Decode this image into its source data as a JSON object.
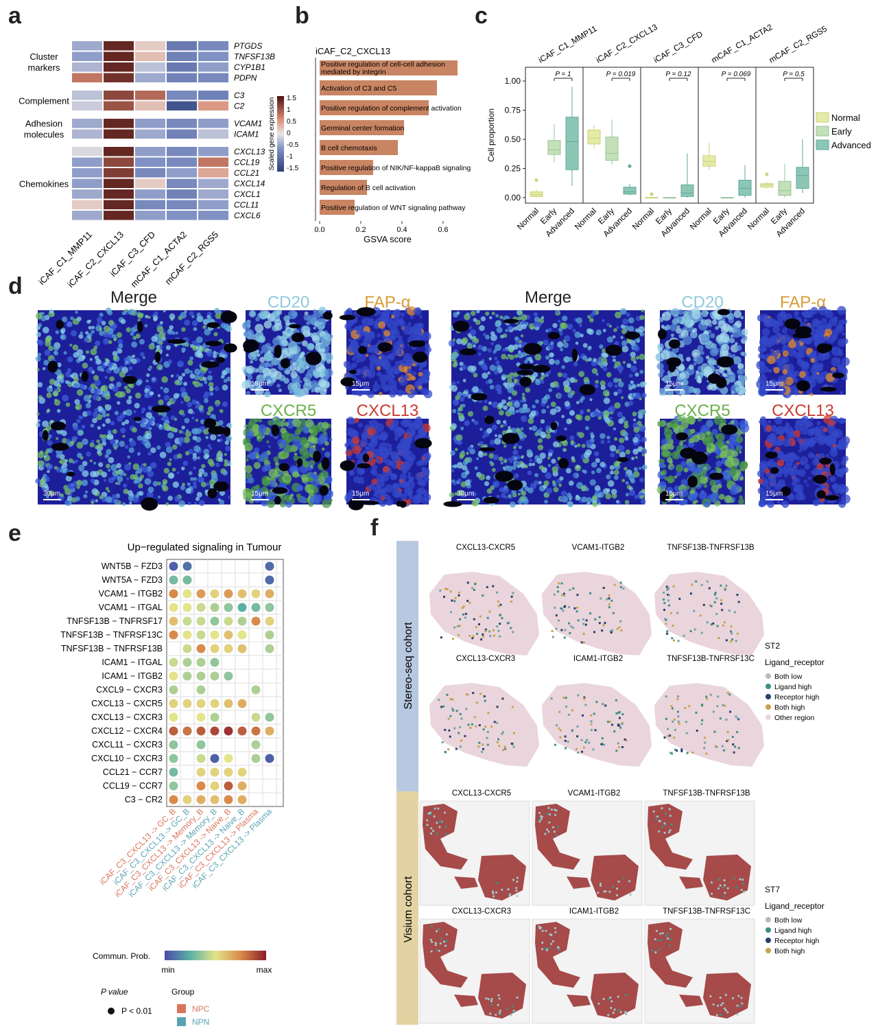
{
  "panels": {
    "a": "a",
    "b": "b",
    "c": "c",
    "d": "d",
    "e": "e",
    "f": "f"
  },
  "panel_a": {
    "columns": [
      "iCAF_C1_MMP11",
      "iCAF_C2_CXCL13",
      "iCAF_C3_CFD",
      "mCAF_C1_ACTA2",
      "mCAF_C2_RGS5"
    ],
    "groups": [
      {
        "label": "Cluster\nmarkers",
        "genes": [
          "PTGDS",
          "TNFSF13B",
          "CYP1B1",
          "PDPN"
        ]
      },
      {
        "label": "Complement",
        "genes": [
          "C3",
          "C2"
        ]
      },
      {
        "label": "Adhesion\nmolecules",
        "genes": [
          "VCAM1",
          "ICAM1"
        ]
      },
      {
        "label": "Chemokines",
        "genes": [
          "CXCL13",
          "CCL19",
          "CCL21",
          "CXCL14",
          "CXCL1",
          "CCL11",
          "CXCL6"
        ]
      }
    ],
    "values": [
      [
        -0.5,
        1.6,
        0.2,
        -1.0,
        -0.8
      ],
      [
        -0.6,
        1.6,
        0.3,
        -0.9,
        -0.7
      ],
      [
        -0.4,
        1.6,
        -0.3,
        -1.0,
        -0.6
      ],
      [
        0.9,
        1.5,
        -0.5,
        -0.9,
        -0.8
      ],
      [
        -0.3,
        1.3,
        1.0,
        -0.8,
        -0.9
      ],
      [
        -0.2,
        1.2,
        0.3,
        -1.5,
        0.6
      ],
      [
        -0.5,
        1.6,
        -0.6,
        -0.8,
        -0.6
      ],
      [
        -0.4,
        1.6,
        -0.5,
        -0.9,
        -0.3
      ],
      [
        -0.1,
        1.6,
        -0.6,
        -0.8,
        -0.6
      ],
      [
        -0.6,
        1.3,
        -0.7,
        -0.8,
        0.9
      ],
      [
        -0.6,
        1.4,
        -0.8,
        -0.6,
        0.5
      ],
      [
        -0.6,
        1.6,
        0.2,
        -0.8,
        -0.5
      ],
      [
        -0.5,
        1.6,
        -0.6,
        -0.9,
        -0.5
      ],
      [
        0.2,
        1.6,
        -0.8,
        -0.8,
        -0.6
      ],
      [
        -0.5,
        1.6,
        -0.6,
        -0.7,
        -0.7
      ]
    ],
    "legend_title": "Scaled gene expression",
    "legend_ticks": [
      "1.5",
      "1",
      "0.5",
      "0",
      "-0.5",
      "-1",
      "-1.5"
    ]
  },
  "panel_b": {
    "title": "iCAF_C2_CXCL13",
    "xlabel": "GSVA score",
    "ticks": [
      "0.0",
      "0.2",
      "0.4",
      "0.6"
    ],
    "bars": [
      {
        "l1": "Positive regulation of cell-cell adhesion",
        "l2": "mediated by integrin",
        "v": 0.67
      },
      {
        "l1": "Activation of C3 and C5",
        "l2": "",
        "v": 0.57
      },
      {
        "l1": "Positive regulation of complement activation",
        "l2": "",
        "v": 0.53
      },
      {
        "l1": "Germinal center formation",
        "l2": "",
        "v": 0.41
      },
      {
        "l1": "B cell chemotaxis",
        "l2": "",
        "v": 0.38
      },
      {
        "l1": "Positive regulation of NIK/NF-kappaB signaling",
        "l2": "",
        "v": 0.26
      },
      {
        "l1": "Regulation of B cell activation",
        "l2": "",
        "v": 0.23
      },
      {
        "l1": "Positive regulation of WNT signaling pathway",
        "l2": "",
        "v": 0.17
      }
    ]
  },
  "panel_c": {
    "ylabel": "Cell proportion",
    "yticks": [
      "0.00",
      "0.25",
      "0.50",
      "0.75",
      "1.00"
    ],
    "groups": [
      "Normal",
      "Early",
      "Advanced"
    ],
    "legend": [
      "Normal",
      "Early",
      "Advanced"
    ],
    "colors": [
      "#e4eba6",
      "#c4e0b8",
      "#8cc7b6"
    ],
    "facets": [
      {
        "title": "iCAF_C1_MMP11",
        "p": "P = 1",
        "boxes": [
          [
            0,
            0.01,
            0.025,
            0.05,
            0.07
          ],
          [
            0.3,
            0.37,
            0.41,
            0.49,
            0.63
          ],
          [
            0.1,
            0.24,
            0.48,
            0.69,
            0.95
          ]
        ],
        "outliers": [
          [
            0,
            0.15
          ]
        ]
      },
      {
        "title": "iCAF_C2_CXCL13",
        "p": "P = 0.019",
        "boxes": [
          [
            0.42,
            0.46,
            0.51,
            0.58,
            0.62
          ],
          [
            0.28,
            0.32,
            0.38,
            0.52,
            0.67
          ],
          [
            0.02,
            0.03,
            0.05,
            0.09,
            0.12
          ]
        ],
        "outliers": [
          [
            2,
            0.27
          ]
        ]
      },
      {
        "title": "iCAF_C3_CFD",
        "p": "P = 0.12",
        "boxes": [
          [
            0,
            0,
            0.001,
            0.002,
            0.003
          ],
          [
            0,
            0,
            0.001,
            0.002,
            0.003
          ],
          [
            0,
            0.01,
            0.04,
            0.11,
            0.38
          ]
        ],
        "outliers": [
          [
            0,
            0.03
          ]
        ]
      },
      {
        "title": "mCAF_C1_ACTA2",
        "p": "P = 0.069",
        "boxes": [
          [
            0.24,
            0.27,
            0.31,
            0.36,
            0.47
          ],
          [
            0,
            0,
            0.001,
            0.002,
            0.003
          ],
          [
            0,
            0.02,
            0.08,
            0.15,
            0.28
          ]
        ],
        "outliers": []
      },
      {
        "title": "mCAF_C2_RGS5",
        "p": "P = 0.5",
        "boxes": [
          [
            0.08,
            0.09,
            0.11,
            0.12,
            0.14
          ],
          [
            0,
            0.02,
            0.06,
            0.14,
            0.29
          ],
          [
            0.04,
            0.08,
            0.19,
            0.26,
            0.5
          ]
        ],
        "outliers": [
          [
            0,
            0.2
          ]
        ]
      }
    ]
  },
  "panel_d": {
    "merge": "Merge",
    "cd20": "CD20",
    "fap": "FAP-α",
    "cxcr5": "CXCR5",
    "cxcl13": "CXCL13",
    "sb_large": "30μm",
    "sb_small": "15μm"
  },
  "panel_e": {
    "title": "Up−regulated signaling in Tumour",
    "rows": [
      "WNT5B − FZD3",
      "WNT5A − FZD3",
      "VCAM1 − ITGB2",
      "VCAM1 − ITGAL",
      "TNFSF13B − TNFRSF17",
      "TNFSF13B − TNFRSF13C",
      "TNFSF13B − TNFRSF13B",
      "ICAM1 − ITGAL",
      "ICAM1 − ITGB2",
      "CXCL9 − CXCR3",
      "CXCL13 − CXCR5",
      "CXCL13 − CXCR3",
      "CXCL12 − CXCR4",
      "CXCL11 − CXCR3",
      "CXCL10 − CXCR3",
      "CCL21 − CCR7",
      "CCL19 − CCR7",
      "C3 − CR2"
    ],
    "cols": [
      "iCAF_C3_CXCL13 -> GC_B",
      "iCAF_C3_CXCL13 -> GC_B",
      "iCAF_C3_CXCL13 -> Memory_B",
      "iCAF_C3_CXCL13 -> Memory_B",
      "iCAF_C3_CXCL13 -> Naive_B",
      "iCAF_C3_CXCL13 -> Naive_B",
      "iCAF_C3_CXCL13 -> Plasma",
      "iCAF_C3_CXCL13 -> Plasma"
    ],
    "col_groups": [
      "NPC",
      "NPN",
      "NPC",
      "NPN",
      "NPC",
      "NPN",
      "NPC",
      "NPN"
    ],
    "dots": [
      [
        0.05,
        0.1,
        null,
        null,
        null,
        null,
        null,
        0.08
      ],
      [
        0.3,
        0.3,
        null,
        null,
        null,
        null,
        null,
        0.08
      ],
      [
        0.75,
        0.5,
        0.7,
        0.55,
        0.7,
        0.6,
        0.55,
        0.65
      ],
      [
        0.5,
        0.5,
        0.45,
        0.4,
        0.35,
        0.25,
        0.3,
        0.35
      ],
      [
        0.6,
        0.45,
        0.45,
        0.35,
        0.45,
        0.4,
        0.75,
        0.55
      ],
      [
        0.75,
        0.5,
        0.45,
        0.5,
        0.6,
        0.5,
        null,
        0.4
      ],
      [
        null,
        0.45,
        0.75,
        0.55,
        0.55,
        0.6,
        null,
        0.4
      ],
      [
        0.45,
        0.4,
        0.4,
        0.35,
        null,
        null,
        null,
        null
      ],
      [
        0.5,
        0.4,
        0.4,
        0.4,
        0.35,
        null,
        null,
        null
      ],
      [
        0.4,
        null,
        0.4,
        null,
        null,
        null,
        0.4,
        null
      ],
      [
        0.55,
        0.55,
        0.55,
        0.55,
        0.6,
        0.65,
        null,
        null
      ],
      [
        0.5,
        null,
        0.5,
        0.4,
        null,
        null,
        0.45,
        0.35
      ],
      [
        0.85,
        0.8,
        0.85,
        0.9,
        0.95,
        0.85,
        0.8,
        0.65
      ],
      [
        0.35,
        null,
        0.35,
        null,
        null,
        null,
        0.4,
        null
      ],
      [
        0.35,
        null,
        0.45,
        0.05,
        0.5,
        null,
        0.4,
        0.05
      ],
      [
        0.3,
        null,
        0.55,
        0.55,
        0.55,
        0.55,
        null,
        null
      ],
      [
        0.35,
        null,
        0.75,
        0.55,
        0.85,
        0.65,
        null,
        null
      ],
      [
        0.75,
        0.55,
        0.65,
        0.6,
        0.75,
        0.65,
        null,
        null
      ]
    ],
    "cbar_title": "Commun. Prob.",
    "cbar_min": "min",
    "cbar_max": "max",
    "pval_title": "P value",
    "pval_item": "P < 0.01",
    "group_title": "Group",
    "group_items": [
      "NPC",
      "NPN"
    ],
    "group_colors": {
      "NPC": "#d9745a",
      "NPN": "#5aa3b2"
    }
  },
  "panel_f": {
    "stereo_label": "Stereo-seq cohort",
    "visium_label": "Visium cohort",
    "stereo_titles": [
      "CXCL13-CXCR5",
      "VCAM1-ITGB2",
      "TNFSF13B-TNFRSF13B",
      "CXCL13-CXCR3",
      "ICAM1-ITGB2",
      "TNFSF13B-TNFRSF13C"
    ],
    "visium_titles": [
      "CXCL13-CXCR5",
      "VCAM1-ITGB2",
      "TNFSF13B-TNFRSF13B",
      "CXCL13-CXCR3",
      "ICAM1-ITGB2",
      "TNFSF13B-TNFRSF13C"
    ],
    "legend1": {
      "sample": "ST2",
      "title": "Ligand_receptor",
      "items": [
        "Both low",
        "Ligand high",
        "Receptor high",
        "Both high",
        "Other region"
      ],
      "colors": [
        "#b9b9b9",
        "#3e8f86",
        "#2b3f6e",
        "#c9a24a",
        "#ead5dc"
      ]
    },
    "legend2": {
      "sample": "ST7",
      "title": "Ligand_receptor",
      "items": [
        "Both low",
        "Ligand high",
        "Receptor high",
        "Both high"
      ],
      "colors": [
        "#b9b9b9",
        "#3e8f86",
        "#2b3f6e",
        "#c9a24a"
      ]
    }
  }
}
